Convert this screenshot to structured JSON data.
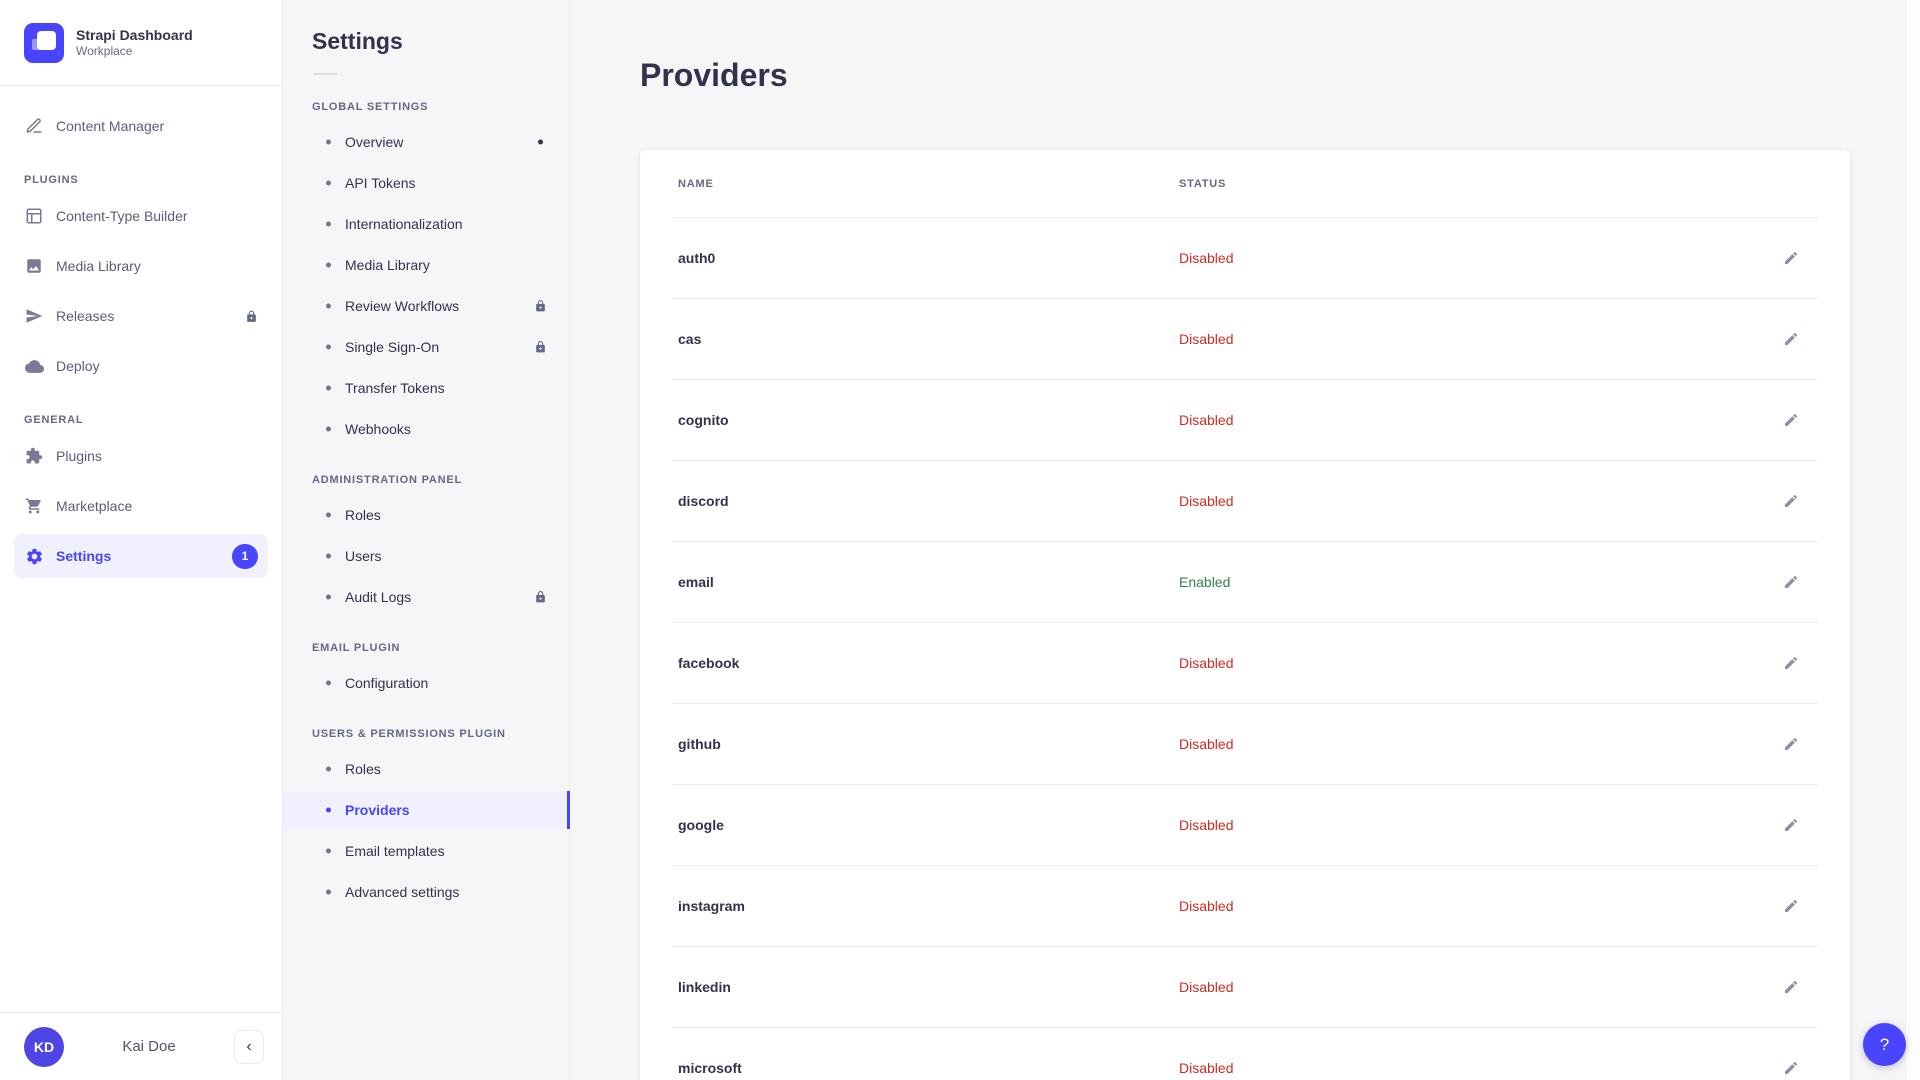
{
  "brand": {
    "title": "Strapi Dashboard",
    "subtitle": "Workplace"
  },
  "colors": {
    "accent": "#4945FF",
    "accent_light_bg": "#F0F0FF",
    "danger": "#D02B20",
    "success": "#328048",
    "page_bg": "#F6F6F9",
    "border": "#EAEAEF"
  },
  "sidebar": {
    "top_item": {
      "label": "Content Manager",
      "icon": "pen-icon"
    },
    "sections": [
      {
        "label": "PLUGINS",
        "items": [
          {
            "label": "Content-Type Builder",
            "icon": "layout-icon"
          },
          {
            "label": "Media Library",
            "icon": "image-icon"
          },
          {
            "label": "Releases",
            "icon": "paper-plane-icon",
            "locked": true
          },
          {
            "label": "Deploy",
            "icon": "cloud-icon"
          }
        ]
      },
      {
        "label": "GENERAL",
        "items": [
          {
            "label": "Plugins",
            "icon": "puzzle-icon"
          },
          {
            "label": "Marketplace",
            "icon": "cart-icon"
          },
          {
            "label": "Settings",
            "icon": "gear-icon",
            "active": true,
            "badge": "1"
          }
        ]
      }
    ],
    "user": {
      "initials": "KD",
      "name": "Kai Doe",
      "collapse_icon": "‹"
    }
  },
  "subnav": {
    "title": "Settings",
    "sections": [
      {
        "label": "GLOBAL SETTINGS",
        "items": [
          {
            "label": "Overview",
            "dot": true
          },
          {
            "label": "API Tokens"
          },
          {
            "label": "Internationalization"
          },
          {
            "label": "Media Library"
          },
          {
            "label": "Review Workflows",
            "locked": true
          },
          {
            "label": "Single Sign-On",
            "locked": true
          },
          {
            "label": "Transfer Tokens"
          },
          {
            "label": "Webhooks"
          }
        ]
      },
      {
        "label": "ADMINISTRATION PANEL",
        "items": [
          {
            "label": "Roles"
          },
          {
            "label": "Users"
          },
          {
            "label": "Audit Logs",
            "locked": true
          }
        ]
      },
      {
        "label": "EMAIL PLUGIN",
        "items": [
          {
            "label": "Configuration"
          }
        ]
      },
      {
        "label": "USERS & PERMISSIONS PLUGIN",
        "items": [
          {
            "label": "Roles"
          },
          {
            "label": "Providers",
            "active": true
          },
          {
            "label": "Email templates"
          },
          {
            "label": "Advanced settings"
          }
        ]
      }
    ]
  },
  "main": {
    "title": "Providers",
    "table": {
      "columns": [
        "NAME",
        "STATUS"
      ],
      "rows": [
        {
          "name": "auth0",
          "status": "Disabled"
        },
        {
          "name": "cas",
          "status": "Disabled"
        },
        {
          "name": "cognito",
          "status": "Disabled"
        },
        {
          "name": "discord",
          "status": "Disabled"
        },
        {
          "name": "email",
          "status": "Enabled"
        },
        {
          "name": "facebook",
          "status": "Disabled"
        },
        {
          "name": "github",
          "status": "Disabled"
        },
        {
          "name": "google",
          "status": "Disabled"
        },
        {
          "name": "instagram",
          "status": "Disabled"
        },
        {
          "name": "linkedin",
          "status": "Disabled"
        },
        {
          "name": "microsoft",
          "status": "Disabled"
        }
      ]
    },
    "help_label": "?"
  }
}
